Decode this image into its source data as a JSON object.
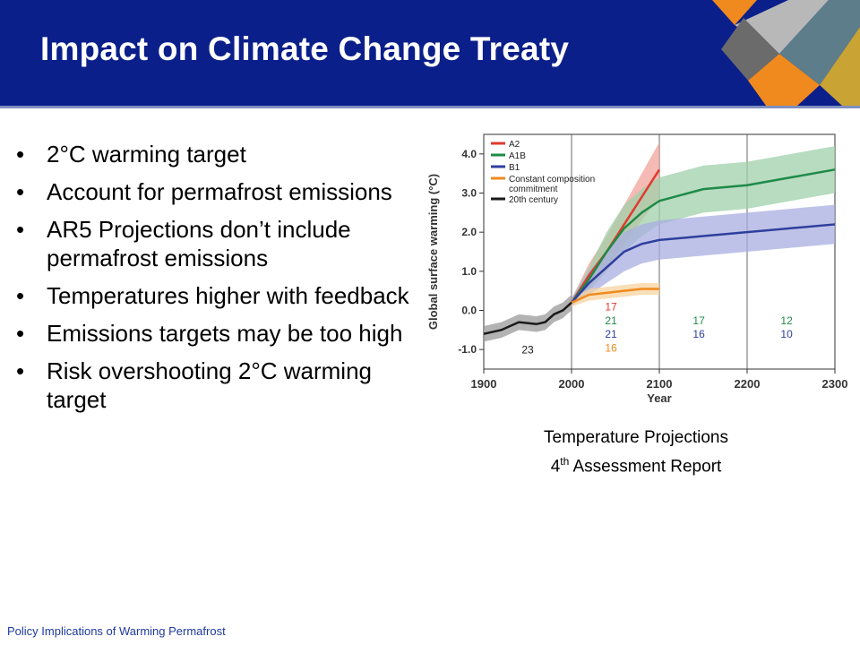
{
  "slide": {
    "title": "Impact on Climate Change Treaty",
    "bullets": [
      "2°C warming target",
      "Account for permafrost emissions",
      "AR5 Projections don’t include permafrost emissions",
      "Temperatures higher with feedback",
      "Emissions targets may be too high",
      "Risk overshooting 2°C warming target"
    ],
    "caption": {
      "line1": "Temperature Projections",
      "line2_num": "4",
      "line2_sup": "th",
      "line2_rest": " Assessment Report"
    },
    "footer": "Policy Implications of Warming Permafrost",
    "colors": {
      "header": "#0b1f8a",
      "accent_orange": "#f08a1e"
    }
  },
  "chart_data": {
    "type": "line",
    "xlabel": "Year",
    "ylabel": "Global surface warming (°C)",
    "xlim": [
      1900,
      2300
    ],
    "ylim": [
      -1.5,
      4.5
    ],
    "xticks": [
      "1900",
      "2000",
      "2100",
      "2200",
      "2300"
    ],
    "yticks": [
      "-1.0",
      "0.0",
      "1.0",
      "2.0",
      "3.0",
      "4.0"
    ],
    "legend_position": "top-left",
    "series": [
      {
        "name": "A2",
        "color": "#e03a2e",
        "band": "#f2a39a",
        "x": [
          2000,
          2020,
          2040,
          2060,
          2080,
          2100
        ],
        "y": [
          0.2,
          0.9,
          1.5,
          2.2,
          2.9,
          3.6
        ],
        "spread": [
          0.1,
          0.3,
          0.4,
          0.5,
          0.6,
          0.7
        ]
      },
      {
        "name": "A1B",
        "color": "#1f8a48",
        "band": "#9fd0a9",
        "x": [
          2000,
          2020,
          2040,
          2060,
          2080,
          2100,
          2150,
          2200,
          2250,
          2300
        ],
        "y": [
          0.2,
          0.8,
          1.5,
          2.1,
          2.5,
          2.8,
          3.1,
          3.2,
          3.4,
          3.6
        ],
        "spread": [
          0.1,
          0.3,
          0.5,
          0.6,
          0.6,
          0.6,
          0.6,
          0.6,
          0.6,
          0.6
        ]
      },
      {
        "name": "B1",
        "color": "#2e3f9e",
        "band": "#a9aee0",
        "x": [
          2000,
          2020,
          2040,
          2060,
          2080,
          2100,
          2150,
          2200,
          2250,
          2300
        ],
        "y": [
          0.2,
          0.7,
          1.1,
          1.5,
          1.7,
          1.8,
          1.9,
          2.0,
          2.1,
          2.2
        ],
        "spread": [
          0.1,
          0.3,
          0.4,
          0.5,
          0.5,
          0.5,
          0.5,
          0.5,
          0.5,
          0.5
        ]
      },
      {
        "name": "Constant composition commitment",
        "color": "#f08a1e",
        "band": "#f7d39f",
        "x": [
          2000,
          2020,
          2040,
          2060,
          2080,
          2100
        ],
        "y": [
          0.2,
          0.4,
          0.45,
          0.5,
          0.55,
          0.55
        ],
        "spread": [
          0.1,
          0.15,
          0.15,
          0.15,
          0.15,
          0.15
        ]
      },
      {
        "name": "20th century",
        "color": "#1a1a1a",
        "band": "#9a9a9a",
        "x": [
          1900,
          1920,
          1940,
          1960,
          1970,
          1980,
          1990,
          2000
        ],
        "y": [
          -0.6,
          -0.5,
          -0.3,
          -0.35,
          -0.3,
          -0.1,
          0.0,
          0.2
        ],
        "spread": [
          0.2,
          0.2,
          0.2,
          0.2,
          0.2,
          0.2,
          0.2,
          0.2
        ]
      }
    ],
    "period_dividers": [
      2000,
      2100,
      2200
    ],
    "model_counts": [
      {
        "x": 1950,
        "y": -1.1,
        "text": "23",
        "color": "#1a1a1a"
      },
      {
        "x": 2045,
        "y": 0.0,
        "text": "17",
        "color": "#e03a2e"
      },
      {
        "x": 2045,
        "y": -0.35,
        "text": "21",
        "color": "#1f8a48"
      },
      {
        "x": 2045,
        "y": -0.7,
        "text": "21",
        "color": "#2e3f9e"
      },
      {
        "x": 2045,
        "y": -1.05,
        "text": "16",
        "color": "#f08a1e"
      },
      {
        "x": 2145,
        "y": -0.35,
        "text": "17",
        "color": "#1f8a48"
      },
      {
        "x": 2145,
        "y": -0.7,
        "text": "16",
        "color": "#2e3f9e"
      },
      {
        "x": 2245,
        "y": -0.35,
        "text": "12",
        "color": "#1f8a48"
      },
      {
        "x": 2245,
        "y": -0.7,
        "text": "10",
        "color": "#2e3f9e"
      }
    ]
  }
}
